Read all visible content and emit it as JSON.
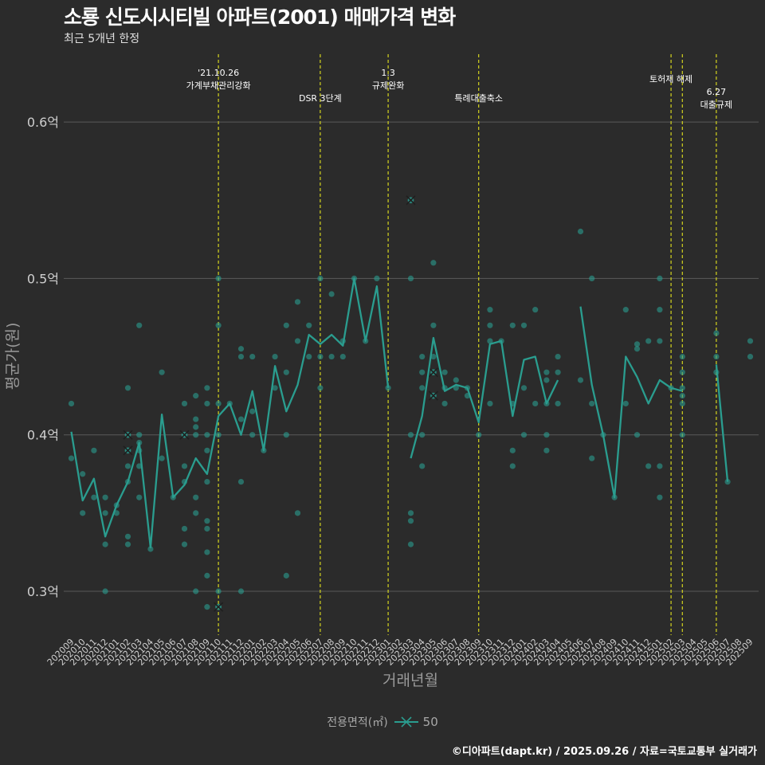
{
  "title": "소룡 신도시시티빌 아파트(2001) 매매가격 변화",
  "subtitle": "최근 5개년 한정",
  "caption": "©디아파트(dapt.kr) / 2025.09.26 / 자료=국토교통부 실거래가",
  "legend": {
    "title": "전용면적(㎡)",
    "label": "50"
  },
  "colors": {
    "background": "#2b2b2b",
    "series": "#2a9d8f",
    "event_line": "#d4d41e",
    "grid": "#5a5a5a",
    "text": "#ffffff",
    "axis_text": "#cfcfcf"
  },
  "chart_data": {
    "type": "line",
    "xlabel": "거래년월",
    "ylabel": "평균가(원)",
    "ylim": [
      0.27,
      0.65
    ],
    "y_ticks": [
      {
        "value": 0.3,
        "label": "0.3억"
      },
      {
        "value": 0.4,
        "label": "0.4억"
      },
      {
        "value": 0.5,
        "label": "0.5억"
      },
      {
        "value": 0.6,
        "label": "0.6억"
      }
    ],
    "categories": [
      "202009",
      "202010",
      "202011",
      "202012",
      "202101",
      "202102",
      "202103",
      "202104",
      "202105",
      "202106",
      "202107",
      "202108",
      "202109",
      "202110",
      "202111",
      "202112",
      "202201",
      "202202",
      "202203",
      "202204",
      "202205",
      "202206",
      "202207",
      "202208",
      "202209",
      "202210",
      "202211",
      "202212",
      "202301",
      "202302",
      "202303",
      "202304",
      "202305",
      "202306",
      "202307",
      "202308",
      "202309",
      "202310",
      "202311",
      "202312",
      "202401",
      "202402",
      "202403",
      "202404",
      "202405",
      "202406",
      "202407",
      "202408",
      "202409",
      "202410",
      "202411",
      "202412",
      "202501",
      "202502",
      "202503",
      "202504",
      "202505",
      "202506",
      "202507",
      "202508",
      "202509"
    ],
    "series": [
      {
        "name": "50",
        "values": [
          0.402,
          0.358,
          0.372,
          0.335,
          0.355,
          0.37,
          0.395,
          0.328,
          0.413,
          0.36,
          0.368,
          0.385,
          0.375,
          0.412,
          0.42,
          0.4,
          0.428,
          0.39,
          0.444,
          0.415,
          0.432,
          0.464,
          0.458,
          0.464,
          0.457,
          0.5,
          0.46,
          0.495,
          0.43,
          null,
          0.385,
          0.412,
          0.462,
          0.428,
          0.432,
          0.43,
          0.408,
          0.458,
          0.46,
          0.412,
          0.448,
          0.45,
          0.42,
          0.435,
          null,
          0.482,
          0.432,
          0.4,
          0.36,
          0.45,
          0.437,
          0.42,
          0.435,
          0.43,
          0.428,
          null,
          null,
          0.445,
          0.37,
          null,
          null
        ]
      }
    ],
    "points": [
      [
        0,
        0.42
      ],
      [
        0,
        0.385
      ],
      [
        1,
        0.375
      ],
      [
        1,
        0.35
      ],
      [
        2,
        0.39
      ],
      [
        2,
        0.36
      ],
      [
        3,
        0.36
      ],
      [
        3,
        0.35
      ],
      [
        3,
        0.33
      ],
      [
        3,
        0.3
      ],
      [
        4,
        0.355
      ],
      [
        4,
        0.35
      ],
      [
        5,
        0.43
      ],
      [
        5,
        0.4
      ],
      [
        5,
        0.39
      ],
      [
        5,
        0.38
      ],
      [
        5,
        0.37
      ],
      [
        5,
        0.335
      ],
      [
        5,
        0.33
      ],
      [
        6,
        0.47
      ],
      [
        6,
        0.4
      ],
      [
        6,
        0.395
      ],
      [
        6,
        0.39
      ],
      [
        6,
        0.38
      ],
      [
        6,
        0.36
      ],
      [
        7,
        0.327
      ],
      [
        8,
        0.44
      ],
      [
        8,
        0.385
      ],
      [
        9,
        0.36
      ],
      [
        10,
        0.42
      ],
      [
        10,
        0.4
      ],
      [
        10,
        0.38
      ],
      [
        10,
        0.37
      ],
      [
        10,
        0.34
      ],
      [
        10,
        0.33
      ],
      [
        11,
        0.425
      ],
      [
        11,
        0.41
      ],
      [
        11,
        0.405
      ],
      [
        11,
        0.4
      ],
      [
        11,
        0.36
      ],
      [
        11,
        0.35
      ],
      [
        11,
        0.3
      ],
      [
        12,
        0.43
      ],
      [
        12,
        0.42
      ],
      [
        12,
        0.4
      ],
      [
        12,
        0.39
      ],
      [
        12,
        0.37
      ],
      [
        12,
        0.345
      ],
      [
        12,
        0.34
      ],
      [
        12,
        0.325
      ],
      [
        12,
        0.31
      ],
      [
        12,
        0.29
      ],
      [
        13,
        0.5
      ],
      [
        13,
        0.47
      ],
      [
        13,
        0.42
      ],
      [
        13,
        0.4
      ],
      [
        13,
        0.3
      ],
      [
        13,
        0.29
      ],
      [
        14,
        0.42
      ],
      [
        15,
        0.455
      ],
      [
        15,
        0.45
      ],
      [
        15,
        0.41
      ],
      [
        15,
        0.37
      ],
      [
        15,
        0.3
      ],
      [
        16,
        0.45
      ],
      [
        16,
        0.415
      ],
      [
        16,
        0.4
      ],
      [
        17,
        0.39
      ],
      [
        18,
        0.45
      ],
      [
        18,
        0.43
      ],
      [
        19,
        0.47
      ],
      [
        19,
        0.44
      ],
      [
        19,
        0.4
      ],
      [
        19,
        0.31
      ],
      [
        20,
        0.485
      ],
      [
        20,
        0.46
      ],
      [
        20,
        0.35
      ],
      [
        21,
        0.47
      ],
      [
        21,
        0.45
      ],
      [
        22,
        0.5
      ],
      [
        22,
        0.45
      ],
      [
        22,
        0.43
      ],
      [
        23,
        0.49
      ],
      [
        23,
        0.45
      ],
      [
        24,
        0.46
      ],
      [
        24,
        0.45
      ],
      [
        25,
        0.5
      ],
      [
        26,
        0.46
      ],
      [
        27,
        0.5
      ],
      [
        28,
        0.43
      ],
      [
        30,
        0.55
      ],
      [
        30,
        0.5
      ],
      [
        30,
        0.4
      ],
      [
        30,
        0.35
      ],
      [
        30,
        0.345
      ],
      [
        30,
        0.33
      ],
      [
        31,
        0.45
      ],
      [
        31,
        0.44
      ],
      [
        31,
        0.43
      ],
      [
        31,
        0.4
      ],
      [
        31,
        0.38
      ],
      [
        32,
        0.51
      ],
      [
        32,
        0.47
      ],
      [
        32,
        0.45
      ],
      [
        32,
        0.44
      ],
      [
        32,
        0.425
      ],
      [
        33,
        0.44
      ],
      [
        33,
        0.43
      ],
      [
        33,
        0.42
      ],
      [
        34,
        0.435
      ],
      [
        34,
        0.43
      ],
      [
        35,
        0.43
      ],
      [
        35,
        0.425
      ],
      [
        36,
        0.4
      ],
      [
        37,
        0.48
      ],
      [
        37,
        0.47
      ],
      [
        37,
        0.46
      ],
      [
        37,
        0.42
      ],
      [
        38,
        0.46
      ],
      [
        39,
        0.47
      ],
      [
        39,
        0.42
      ],
      [
        39,
        0.39
      ],
      [
        39,
        0.38
      ],
      [
        40,
        0.47
      ],
      [
        40,
        0.43
      ],
      [
        40,
        0.4
      ],
      [
        41,
        0.48
      ],
      [
        41,
        0.42
      ],
      [
        42,
        0.44
      ],
      [
        42,
        0.435
      ],
      [
        42,
        0.42
      ],
      [
        42,
        0.4
      ],
      [
        42,
        0.39
      ],
      [
        43,
        0.45
      ],
      [
        43,
        0.44
      ],
      [
        43,
        0.42
      ],
      [
        45,
        0.53
      ],
      [
        45,
        0.435
      ],
      [
        46,
        0.5
      ],
      [
        46,
        0.42
      ],
      [
        46,
        0.385
      ],
      [
        47,
        0.4
      ],
      [
        48,
        0.36
      ],
      [
        49,
        0.48
      ],
      [
        49,
        0.42
      ],
      [
        50,
        0.458
      ],
      [
        50,
        0.455
      ],
      [
        50,
        0.4
      ],
      [
        51,
        0.46
      ],
      [
        51,
        0.38
      ],
      [
        52,
        0.5
      ],
      [
        52,
        0.48
      ],
      [
        52,
        0.46
      ],
      [
        52,
        0.38
      ],
      [
        52,
        0.36
      ],
      [
        53,
        0.43
      ],
      [
        54,
        0.45
      ],
      [
        54,
        0.44
      ],
      [
        54,
        0.43
      ],
      [
        54,
        0.425
      ],
      [
        54,
        0.42
      ],
      [
        54,
        0.4
      ],
      [
        57,
        0.465
      ],
      [
        57,
        0.45
      ],
      [
        57,
        0.44
      ],
      [
        58,
        0.37
      ],
      [
        60,
        0.46
      ],
      [
        60,
        0.45
      ]
    ],
    "outliers": [
      [
        5,
        0.4
      ],
      [
        5,
        0.39
      ],
      [
        10,
        0.4
      ],
      [
        13,
        0.29
      ],
      [
        30,
        0.55
      ],
      [
        32,
        0.44
      ],
      [
        32,
        0.425
      ]
    ],
    "events": [
      {
        "index": 13,
        "label": "'21.10.26\n가계부채관리강화",
        "level": 1
      },
      {
        "index": 22,
        "label": "DSR 3단계",
        "level": 2
      },
      {
        "index": 28,
        "label": "1.3\n규제완화",
        "level": 1
      },
      {
        "index": 36,
        "label": "특례대출축소",
        "level": 2
      },
      {
        "index": 53,
        "label": "토허제 해제",
        "level": 1
      },
      {
        "index": 54,
        "label": "",
        "level": 1
      },
      {
        "index": 57,
        "label": "6.27\n대출규제",
        "level": 2
      }
    ]
  }
}
